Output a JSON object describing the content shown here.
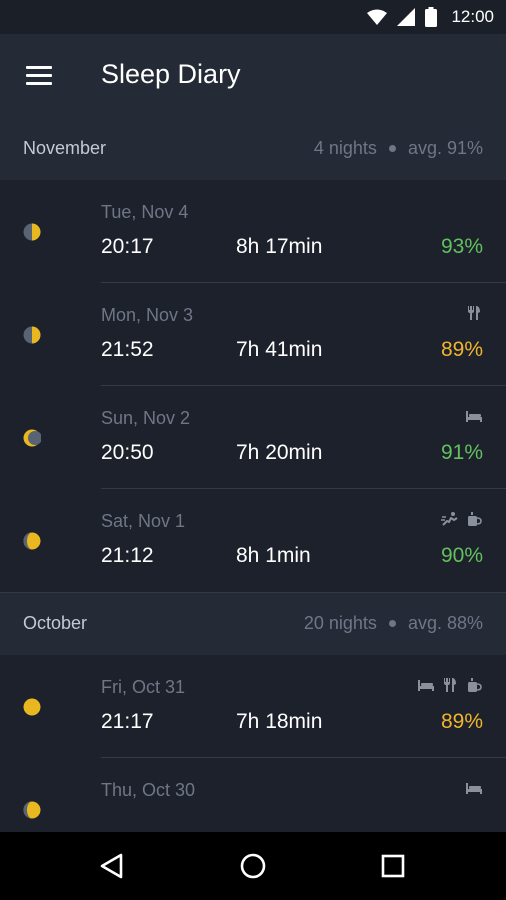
{
  "status": {
    "time": "12:00",
    "icons": [
      "wifi-icon",
      "signal-icon",
      "battery-icon"
    ]
  },
  "appbar": {
    "title": "Sleep Diary",
    "menu_icon": "menu-icon"
  },
  "sections": [
    {
      "month": "November",
      "nights": "4 nights",
      "avg": "avg. 91%",
      "entries": [
        {
          "date": "Tue, Nov 4",
          "start": "20:17",
          "duration": "8h 17min",
          "quality": "93%",
          "quality_color": "#63c05f",
          "moon": "moon-half-icon",
          "tags": []
        },
        {
          "date": "Mon, Nov 3",
          "start": "21:52",
          "duration": "7h 41min",
          "quality": "89%",
          "quality_color": "#f0b52c",
          "moon": "moon-half-icon",
          "tags": [
            "food-icon"
          ]
        },
        {
          "date": "Sun, Nov 2",
          "start": "20:50",
          "duration": "7h 20min",
          "quality": "91%",
          "quality_color": "#63c05f",
          "moon": "moon-crescent-icon",
          "tags": [
            "bed-icon"
          ]
        },
        {
          "date": "Sat, Nov 1",
          "start": "21:12",
          "duration": "8h 1min",
          "quality": "90%",
          "quality_color": "#63c05f",
          "moon": "moon-gibbous-icon",
          "tags": [
            "exercise-icon",
            "coffee-icon"
          ]
        }
      ]
    },
    {
      "month": "October",
      "nights": "20 nights",
      "avg": "avg. 88%",
      "entries": [
        {
          "date": "Fri, Oct 31",
          "start": "21:17",
          "duration": "7h 18min",
          "quality": "89%",
          "quality_color": "#f0b52c",
          "moon": "moon-full-icon",
          "tags": [
            "bed-icon",
            "food-icon",
            "coffee-icon"
          ]
        },
        {
          "date": "Thu, Oct 30",
          "start": "",
          "duration": "",
          "quality": "",
          "quality_color": "#63c05f",
          "moon": "moon-gibbous-icon",
          "tags": [
            "bed-icon"
          ]
        }
      ]
    }
  ],
  "navbar": {
    "icons": [
      "back-icon",
      "home-icon",
      "recents-icon"
    ]
  }
}
